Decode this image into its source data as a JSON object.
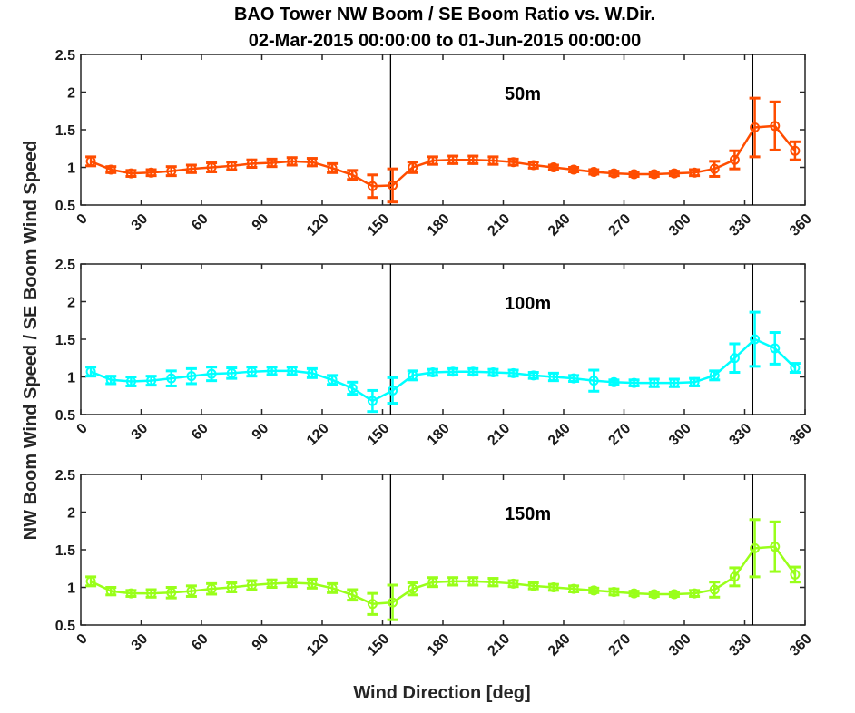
{
  "chart_data": {
    "type": "line",
    "title": "BAO Tower NW Boom / SE Boom Ratio vs. W.Dir.",
    "subtitle": "02-Mar-2015 00:00:00 to 01-Jun-2015 00:00:00",
    "xlabel": "Wind Direction [deg]",
    "ylabel": "NW Boom Wind Speed / SE Boom Wind Speed",
    "xlim": [
      0,
      360
    ],
    "ylim": [
      0.5,
      2.5
    ],
    "xticks": [
      "0",
      "30",
      "60",
      "90",
      "120",
      "150",
      "180",
      "210",
      "240",
      "270",
      "300",
      "330",
      "360"
    ],
    "yticks": [
      "0.5",
      "1",
      "1.5",
      "2",
      "2.5"
    ],
    "grid": false,
    "reference_lines_x": [
      154,
      334
    ],
    "x": [
      5,
      15,
      25,
      35,
      45,
      55,
      65,
      75,
      85,
      95,
      105,
      115,
      125,
      135,
      145,
      155,
      165,
      175,
      185,
      195,
      205,
      215,
      225,
      235,
      245,
      255,
      265,
      275,
      285,
      295,
      305,
      315,
      325,
      335,
      345,
      355
    ],
    "panels": [
      {
        "label": "50m",
        "color": "#ff4d00",
        "values": [
          1.08,
          0.97,
          0.92,
          0.93,
          0.95,
          0.98,
          1.0,
          1.02,
          1.05,
          1.06,
          1.08,
          1.07,
          0.99,
          0.9,
          0.75,
          0.76,
          1.0,
          1.09,
          1.1,
          1.1,
          1.09,
          1.07,
          1.03,
          1.0,
          0.97,
          0.94,
          0.92,
          0.91,
          0.91,
          0.92,
          0.93,
          0.98,
          1.1,
          1.53,
          1.55,
          1.22
        ],
        "errors": [
          0.06,
          0.04,
          0.04,
          0.04,
          0.06,
          0.05,
          0.06,
          0.05,
          0.05,
          0.05,
          0.05,
          0.05,
          0.06,
          0.06,
          0.15,
          0.22,
          0.07,
          0.05,
          0.05,
          0.05,
          0.05,
          0.04,
          0.04,
          0.03,
          0.03,
          0.03,
          0.03,
          0.03,
          0.03,
          0.03,
          0.04,
          0.1,
          0.12,
          0.39,
          0.32,
          0.12
        ]
      },
      {
        "label": "100m",
        "color": "#00ffff",
        "values": [
          1.07,
          0.96,
          0.94,
          0.95,
          0.98,
          1.01,
          1.04,
          1.05,
          1.07,
          1.08,
          1.08,
          1.05,
          0.96,
          0.85,
          0.68,
          0.82,
          1.02,
          1.06,
          1.07,
          1.07,
          1.06,
          1.05,
          1.02,
          1.0,
          0.98,
          0.95,
          0.93,
          0.92,
          0.92,
          0.92,
          0.93,
          1.02,
          1.25,
          1.5,
          1.38,
          1.12
        ],
        "errors": [
          0.06,
          0.05,
          0.06,
          0.06,
          0.1,
          0.1,
          0.09,
          0.07,
          0.06,
          0.05,
          0.05,
          0.06,
          0.06,
          0.08,
          0.14,
          0.17,
          0.06,
          0.04,
          0.04,
          0.04,
          0.04,
          0.04,
          0.04,
          0.05,
          0.04,
          0.14,
          0.03,
          0.04,
          0.05,
          0.05,
          0.05,
          0.06,
          0.19,
          0.36,
          0.21,
          0.06
        ]
      },
      {
        "label": "150m",
        "color": "#99ff1a",
        "values": [
          1.08,
          0.95,
          0.92,
          0.92,
          0.93,
          0.95,
          0.98,
          1.0,
          1.03,
          1.05,
          1.06,
          1.05,
          0.99,
          0.9,
          0.78,
          0.8,
          0.98,
          1.07,
          1.08,
          1.08,
          1.07,
          1.05,
          1.02,
          1.0,
          0.98,
          0.96,
          0.94,
          0.92,
          0.91,
          0.91,
          0.92,
          0.97,
          1.14,
          1.52,
          1.54,
          1.17
        ],
        "errors": [
          0.06,
          0.05,
          0.04,
          0.05,
          0.07,
          0.07,
          0.07,
          0.06,
          0.06,
          0.05,
          0.05,
          0.06,
          0.06,
          0.07,
          0.14,
          0.23,
          0.08,
          0.06,
          0.05,
          0.05,
          0.05,
          0.04,
          0.04,
          0.04,
          0.04,
          0.03,
          0.04,
          0.03,
          0.03,
          0.03,
          0.04,
          0.1,
          0.12,
          0.38,
          0.33,
          0.1
        ]
      }
    ]
  }
}
